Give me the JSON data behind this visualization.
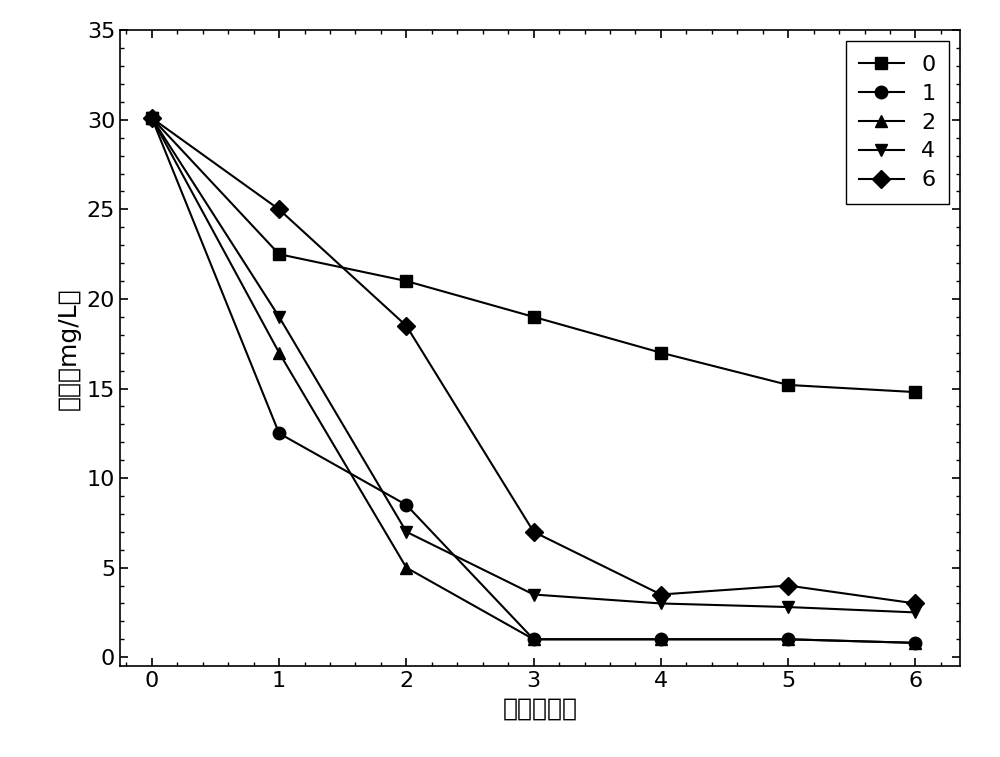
{
  "x": [
    0,
    1,
    2,
    3,
    4,
    5,
    6
  ],
  "series": [
    {
      "label": "0",
      "values": [
        30.1,
        22.5,
        21.0,
        19.0,
        17.0,
        15.2,
        14.8
      ],
      "marker": "s",
      "color": "#000000"
    },
    {
      "label": "1",
      "values": [
        30.1,
        12.5,
        8.5,
        1.0,
        1.0,
        1.0,
        0.8
      ],
      "marker": "o",
      "color": "#000000"
    },
    {
      "label": "2",
      "values": [
        30.1,
        17.0,
        5.0,
        1.0,
        1.0,
        1.0,
        0.8
      ],
      "marker": "^",
      "color": "#000000"
    },
    {
      "label": "4",
      "values": [
        30.1,
        19.0,
        7.0,
        3.5,
        3.0,
        2.8,
        2.5
      ],
      "marker": "v",
      "color": "#000000"
    },
    {
      "label": "6",
      "values": [
        30.1,
        25.0,
        18.5,
        7.0,
        3.5,
        4.0,
        3.0
      ],
      "marker": "D",
      "color": "#000000"
    }
  ],
  "xlabel": "时间（天）",
  "ylabel": "总氮（mg/L）",
  "xlim": [
    -0.25,
    6.35
  ],
  "ylim": [
    -0.5,
    35
  ],
  "yticks": [
    0,
    5,
    10,
    15,
    20,
    25,
    30,
    35
  ],
  "xticks": [
    0,
    1,
    2,
    3,
    4,
    5,
    6
  ],
  "background_color": "#ffffff",
  "marker_size": 9,
  "line_width": 1.5,
  "tick_labelsize": 16,
  "axis_labelsize": 18,
  "legend_fontsize": 16,
  "figsize": [
    10.0,
    7.57
  ],
  "dpi": 100
}
